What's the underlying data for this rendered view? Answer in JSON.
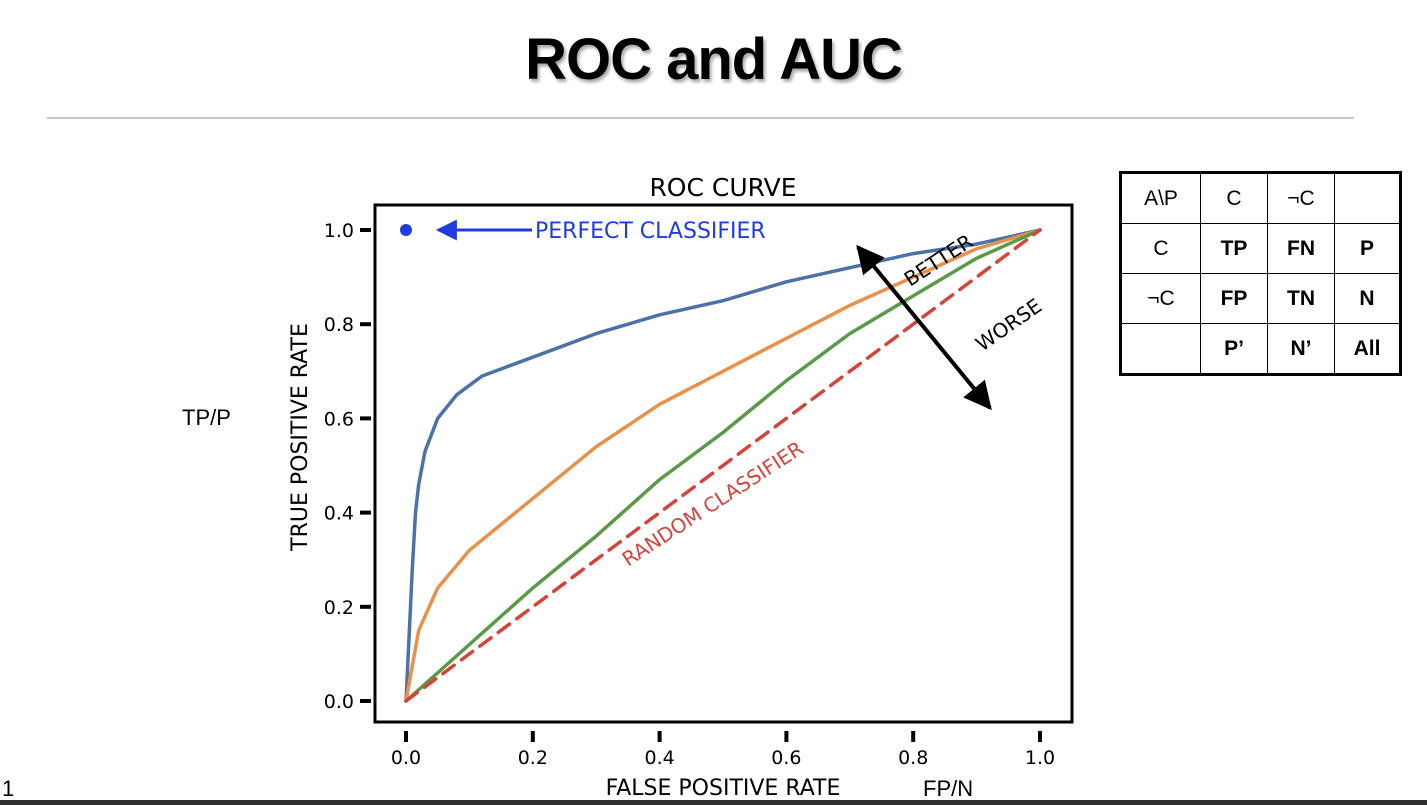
{
  "slide": {
    "title": "ROC and AUC",
    "tp_label": "TP/P",
    "fp_label": "FP/N",
    "page_number": "1"
  },
  "chart_data": {
    "type": "line",
    "title": "ROC CURVE",
    "xlabel": "FALSE POSITIVE RATE",
    "ylabel": "TRUE POSITIVE RATE",
    "xlim": [
      0,
      1
    ],
    "ylim": [
      0,
      1
    ],
    "xticks": [
      "0.0",
      "0.2",
      "0.4",
      "0.6",
      "0.8",
      "1.0"
    ],
    "yticks": [
      "0.0",
      "0.2",
      "0.4",
      "0.6",
      "0.8",
      "1.0"
    ],
    "grid": false,
    "series": [
      {
        "color": "#4a72a8",
        "x": [
          0,
          0.01,
          0.015,
          0.02,
          0.03,
          0.05,
          0.08,
          0.12,
          0.2,
          0.3,
          0.4,
          0.5,
          0.6,
          0.7,
          0.8,
          0.9,
          1.0
        ],
        "y": [
          0,
          0.28,
          0.4,
          0.46,
          0.53,
          0.6,
          0.65,
          0.69,
          0.73,
          0.78,
          0.82,
          0.85,
          0.89,
          0.92,
          0.95,
          0.97,
          1.0
        ]
      },
      {
        "color": "#e8914a",
        "x": [
          0,
          0.02,
          0.05,
          0.1,
          0.2,
          0.3,
          0.4,
          0.5,
          0.6,
          0.7,
          0.8,
          0.9,
          1.0
        ],
        "y": [
          0,
          0.15,
          0.24,
          0.32,
          0.43,
          0.54,
          0.63,
          0.7,
          0.77,
          0.84,
          0.9,
          0.96,
          1.0
        ]
      },
      {
        "color": "#5a9a46",
        "x": [
          0,
          0.1,
          0.2,
          0.3,
          0.4,
          0.5,
          0.6,
          0.7,
          0.8,
          0.9,
          1.0
        ],
        "y": [
          0,
          0.12,
          0.24,
          0.35,
          0.47,
          0.57,
          0.68,
          0.78,
          0.86,
          0.94,
          1.0
        ]
      },
      {
        "color": "#d5433a",
        "dashed": true,
        "x": [
          0,
          1
        ],
        "y": [
          0,
          1
        ]
      }
    ],
    "points": [
      {
        "x": 0,
        "y": 1,
        "color": "#1f3ce0"
      }
    ],
    "annotations": [
      {
        "text": "PERFECT CLASSIFIER",
        "color": "#1f3ce0"
      },
      {
        "text": "RANDOM CLASSIFIER",
        "color": "#d5433a"
      },
      {
        "text": "BETTER",
        "color": "#000000"
      },
      {
        "text": "WORSE",
        "color": "#000000"
      }
    ]
  },
  "table": {
    "rows": [
      [
        "A\\P",
        "C",
        "¬C",
        ""
      ],
      [
        "C",
        "TP",
        "FN",
        "P"
      ],
      [
        "¬C",
        "FP",
        "TN",
        "N"
      ],
      [
        "",
        "P’",
        "N’",
        "All"
      ]
    ]
  }
}
